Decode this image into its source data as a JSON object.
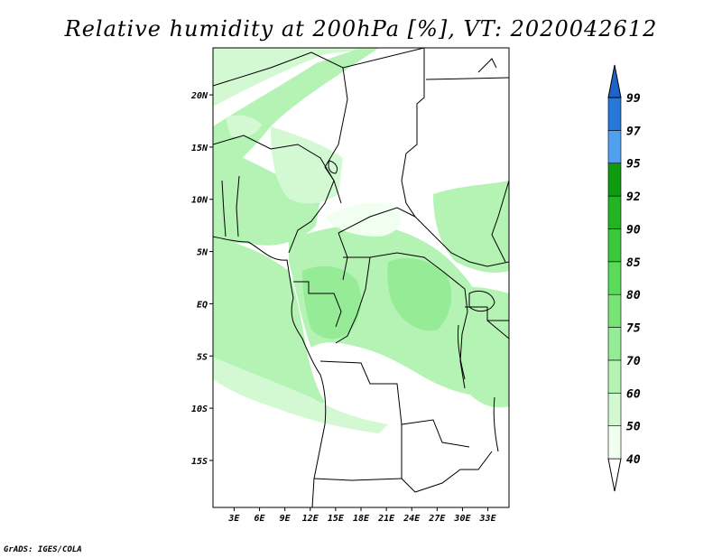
{
  "title": "Relative humidity at 200hPa [%], VT: 2020042612",
  "credit": "GrADS: IGES/COLA",
  "map": {
    "region": "Central Africa",
    "lon_range": [
      0.5,
      35.5
    ],
    "lat_range": [
      -19.5,
      24.5
    ],
    "lat_ticks": [
      {
        "value": 20,
        "label": "20N"
      },
      {
        "value": 15,
        "label": "15N"
      },
      {
        "value": 10,
        "label": "10N"
      },
      {
        "value": 5,
        "label": "5N"
      },
      {
        "value": 0,
        "label": "EQ"
      },
      {
        "value": -5,
        "label": "5S"
      },
      {
        "value": -10,
        "label": "10S"
      },
      {
        "value": -15,
        "label": "15S"
      }
    ],
    "lon_ticks": [
      {
        "value": 3,
        "label": "3E"
      },
      {
        "value": 6,
        "label": "6E"
      },
      {
        "value": 9,
        "label": "9E"
      },
      {
        "value": 12,
        "label": "12E"
      },
      {
        "value": 15,
        "label": "15E"
      },
      {
        "value": 18,
        "label": "18E"
      },
      {
        "value": 21,
        "label": "21E"
      },
      {
        "value": 24,
        "label": "24E"
      },
      {
        "value": 27,
        "label": "27E"
      },
      {
        "value": 30,
        "label": "30E"
      },
      {
        "value": 33,
        "label": "33E"
      }
    ]
  },
  "colorbar": {
    "levels": [
      {
        "label": "40",
        "color": "#f0fff0"
      },
      {
        "label": "50",
        "color": "#d2f9d2"
      },
      {
        "label": "60",
        "color": "#b4f3b4"
      },
      {
        "label": "70",
        "color": "#96eb96"
      },
      {
        "label": "75",
        "color": "#78e478"
      },
      {
        "label": "80",
        "color": "#5adc5a"
      },
      {
        "label": "85",
        "color": "#3cc83c"
      },
      {
        "label": "90",
        "color": "#22b422"
      },
      {
        "label": "92",
        "color": "#0f9a0f"
      },
      {
        "label": "95",
        "color": "#50a0f0"
      },
      {
        "label": "97",
        "color": "#2878dc"
      },
      {
        "label": "99",
        "color": "#1e5ac8"
      }
    ],
    "bottom_color": "#ffffff",
    "top_color": "#1e64c8"
  }
}
